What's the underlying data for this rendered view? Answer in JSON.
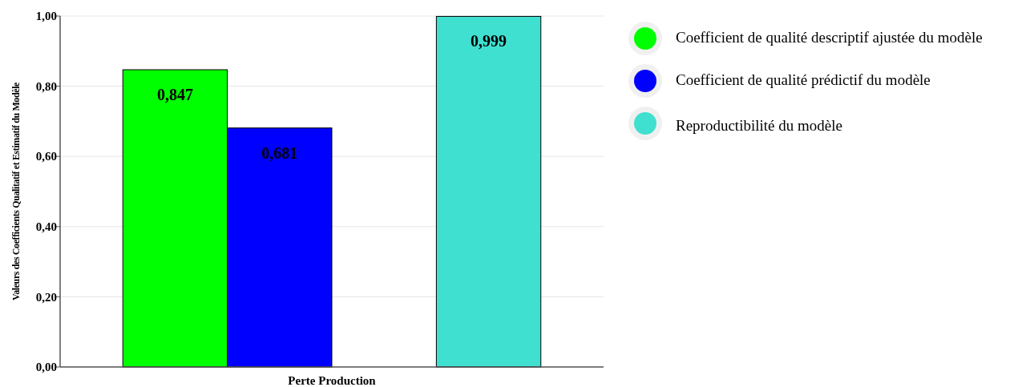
{
  "chart_data": {
    "type": "bar",
    "ylabel": "Valeurs des Coefficients Qualitatif et Estimatif du Modèle",
    "categories": [
      "Perte Production"
    ],
    "series": [
      {
        "name": "Coefficient de qualité descriptif ajustée du modèle",
        "color": "#00ff00",
        "values": [
          0.847
        ],
        "value_labels": [
          "0,847"
        ]
      },
      {
        "name": "Coefficient de qualité prédictif du modèle",
        "color": "#0000ff",
        "values": [
          0.681
        ],
        "value_labels": [
          "0,681"
        ]
      },
      {
        "values": [
          null
        ]
      },
      {
        "name": "Reproductibilité du modèle",
        "color": "#40e0d0",
        "values": [
          0.999
        ],
        "value_labels": [
          "0,999"
        ]
      }
    ],
    "ylim": [
      0,
      1
    ],
    "yticks": [
      {
        "value": 0,
        "label": "0,00"
      },
      {
        "value": 0.2,
        "label": "0,20"
      },
      {
        "value": 0.4,
        "label": "0,40"
      },
      {
        "value": 0.6,
        "label": "0,60"
      },
      {
        "value": 0.8,
        "label": "0,80"
      },
      {
        "value": 1,
        "label": "1,00"
      }
    ],
    "grid": "y",
    "legend": "right"
  }
}
